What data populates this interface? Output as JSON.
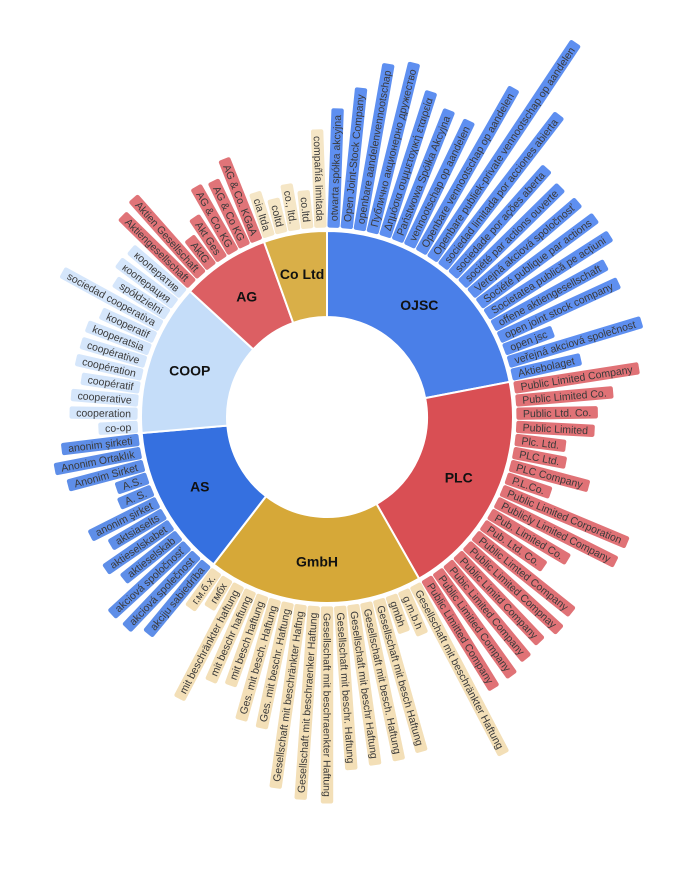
{
  "chart_data": {
    "type": "sunburst",
    "title": "",
    "parents": [
      {
        "name": "OJSC",
        "color": "#4a7fe8",
        "leaf_color": "#5e8ff0",
        "leaves": [
          "otwarta spółka akcyjna",
          "Open Joint-Stock Company",
          "openbare aandelenvennootschap",
          "Публично акционерно дружество",
          "Δημόσια συμμετοχική εταιρεία",
          "Państwowa Spółka Akcyjna",
          "vennootschap op aandelen",
          "Openbare vennootschap op aandelen",
          "Openbare publiek-private vennootschap op aandelen",
          "sociedad limitada por acciones abierta",
          "sociedade por ações aberta",
          "société par actions ouverte",
          "Verejná akciová spoločnosť",
          "Société publique par actions",
          "Societatea publică pe acțiuni",
          "offene aktiengesellschaft",
          "open joint stock company",
          "open jsc",
          "veřejná akciová společnost",
          "Aktiebolaget"
        ]
      },
      {
        "name": "PLC",
        "color": "#d94f54",
        "leaf_color": "#e07276",
        "leaves": [
          "Public Limited Company",
          "Public Limited Co.",
          "Public Ltd. Co.",
          "Public Limited",
          "Plc. Ltd.",
          "PLC Ltd.",
          "PLC Company",
          "P.L.Co.",
          "Public Limited Corporation",
          "Publicly Limited Company",
          "Pub. Limited Co.",
          "Pub. Ltd. Co.",
          "Public Limted Company",
          "Public Limited Compnay",
          "Public Limitd Company",
          "Pubic Limited Company",
          "Public Limitied Company",
          "Public Limitted Company"
        ]
      },
      {
        "name": "GmbH",
        "color": "#d6a838",
        "leaf_color": "#f3dfb7",
        "leaves": [
          "Gesellschaft mit beschränkter Haftung",
          "g.m.b.h",
          "gmbh",
          "Gesellschaft mit besch Haftung",
          "Gesellschaft mit besch. Haftung",
          "Gesellschaft mit beschr Haftung",
          "Gesellschaft mit beschr. Haftung",
          "Gesellschaft mit beschraenkter Haftung",
          "Gesellschaft mit beschraenker Haftung",
          "Gesellschaft mit beschränkter Haftng",
          "Ges. mit beschr. Haftung",
          "Ges. mit besch. Haftung",
          "mit besch haftung",
          "mit beschr haftung",
          "mit beschränkter haftung",
          "гмбх",
          "г.м.б.х."
        ]
      },
      {
        "name": "AS",
        "color": "#3570e0",
        "leaf_color": "#5e8ee8",
        "leaves": [
          "akciju sabiedrība",
          "akciová společnost",
          "akciová spoločnosť",
          "aktieselskab",
          "aktieselskabet",
          "aktsiaselts",
          "anonim şirket",
          "A. S.",
          "A.S.",
          "Anonim Sirket",
          "Anonim Ortaklık",
          "anonim şirketi"
        ]
      },
      {
        "name": "COOP",
        "color": "#c5ddf9",
        "leaf_color": "#d5e6fb",
        "leaves": [
          "co-op",
          "cooperation",
          "cooperative",
          "coopératif",
          "coopération",
          "coopérative",
          "kooperatsia",
          "kooperatif",
          "sociedad cooperativa",
          "spółdzielni",
          "кооперация",
          "кооператив"
        ]
      },
      {
        "name": "AG",
        "color": "#dc5f63",
        "leaf_color": "#e07478",
        "leaves": [
          "Aktiengesellschaft",
          "Aktien Gesellschaft",
          "AktG",
          "Akt Ges",
          "AG & Co. KG",
          "AG & Co KG",
          "AG & Co. KGaA"
        ]
      },
      {
        "name": "Co Ltd",
        "color": "#d9af48",
        "leaf_color": "#f5e6c6",
        "leaves": [
          "cia ltda",
          "coltd",
          "co., ltd.",
          "co.ltd",
          "compañía limitada"
        ]
      }
    ]
  }
}
